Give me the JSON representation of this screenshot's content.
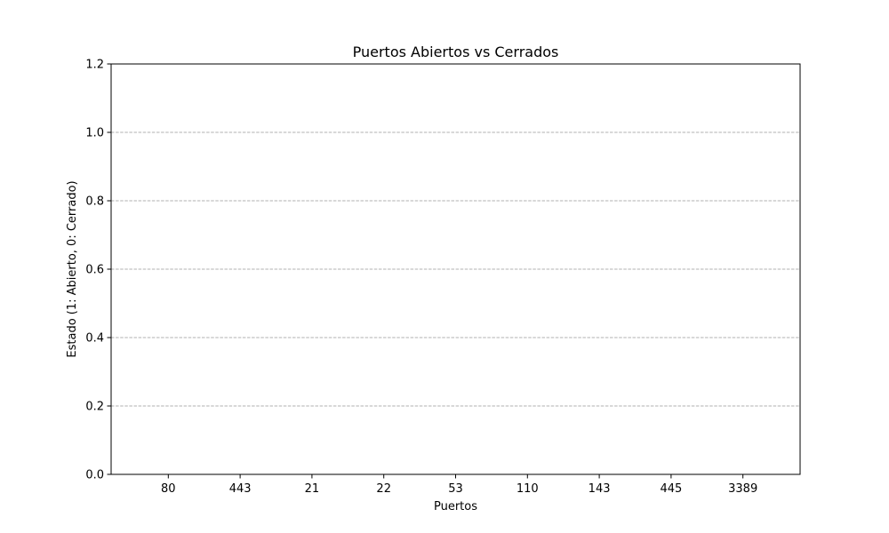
{
  "chart_data": {
    "type": "bar",
    "title": "Puertos Abiertos vs Cerrados",
    "xlabel": "Puertos",
    "ylabel": "Estado (1: Abierto, 0: Cerrado)",
    "categories": [
      "80",
      "443",
      "21",
      "22",
      "53",
      "110",
      "143",
      "445",
      "3389"
    ],
    "values": [
      0,
      0,
      0,
      0,
      0,
      0,
      0,
      0,
      0
    ],
    "ylim": [
      0,
      1.2
    ],
    "yticks": [
      "0.0",
      "0.2",
      "0.4",
      "0.6",
      "0.8",
      "1.0",
      "1.2"
    ],
    "grid": "horizontal dashed",
    "legend": "none",
    "colors": {
      "grid": "#b0b0b0",
      "axis": "#000000",
      "bar": "#1f77b4"
    }
  }
}
